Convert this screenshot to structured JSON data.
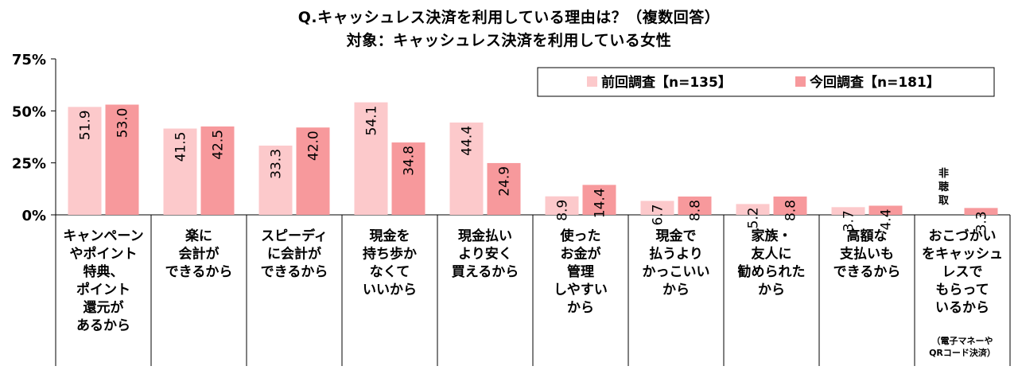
{
  "title_line1": "Q.キャッシュレス決済を利用している理由は？（複数回答）",
  "title_line2": "対象：キャッシュレス決済を利用している女性",
  "colors": {
    "prev": "#fcc9cb",
    "curr": "#f7999c",
    "axis": "#000000"
  },
  "chart_data": {
    "type": "bar",
    "title": "Q.キャッシュレス決済を利用している理由は？（複数回答）",
    "subtitle": "対象：キャッシュレス決済を利用している女性",
    "ylim": [
      0,
      75
    ],
    "yticks": [
      "0%",
      "25%",
      "50%",
      "75%"
    ],
    "grid": false,
    "legend_position": "top-right",
    "categories": [
      [
        "キャンペーン",
        "やポイント",
        "特典、",
        "ポイント",
        "還元が",
        "あるから"
      ],
      [
        "楽に",
        "会計が",
        "できるから"
      ],
      [
        "スピーディ",
        "に会計が",
        "できるから"
      ],
      [
        "現金を",
        "持ち歩か",
        "なくて",
        "いいから"
      ],
      [
        "現金払い",
        "より安く",
        "買えるから"
      ],
      [
        "使った",
        "お金が",
        "管理",
        "しやすい",
        "から"
      ],
      [
        "現金で",
        "払うより",
        "かっこいい",
        "から"
      ],
      [
        "家族・",
        "友人に",
        "勧められた",
        "から"
      ],
      [
        "高額な",
        "支払いも",
        "できるから"
      ],
      [
        "おこづかい",
        "をキャッシュ",
        "レスで",
        "もらって",
        "いるから"
      ]
    ],
    "category_notes": [
      "",
      "",
      "",
      "",
      "",
      "",
      "",
      "",
      "",
      "（電子マネーや QRコード決済）"
    ],
    "series": [
      {
        "name": "前回調査【n=135】",
        "values": [
          51.9,
          41.5,
          33.3,
          54.1,
          44.4,
          8.9,
          6.7,
          5.2,
          3.7,
          null
        ]
      },
      {
        "name": "今回調査【n=181】",
        "values": [
          53.0,
          42.5,
          42.0,
          34.8,
          24.9,
          14.4,
          8.8,
          8.8,
          4.4,
          3.3
        ]
      }
    ],
    "annotations": [
      {
        "category_index": 9,
        "series_index": 0,
        "text": "非聴取"
      }
    ]
  }
}
